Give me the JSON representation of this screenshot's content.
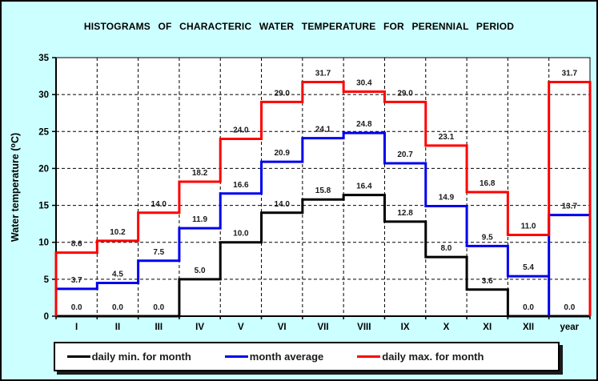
{
  "title": "HISTOGRAMS OF CHARACTERIC WATER TEMPERATURE FOR PERENNIAL PERIOD",
  "chart_data": {
    "type": "line",
    "subtype": "step-histogram",
    "title": "HISTOGRAMS OF CHARACTERIC WATER TEMPERATURE FOR PERENNIAL PERIOD",
    "xlabel": "",
    "ylabel": "Water temperature (⁰C)",
    "categories": [
      "I",
      "II",
      "III",
      "IV",
      "V",
      "VI",
      "VII",
      "VIII",
      "IX",
      "X",
      "XI",
      "XII",
      "year"
    ],
    "ylim": [
      0,
      35
    ],
    "yticks": [
      0,
      5,
      10,
      15,
      20,
      25,
      30,
      35
    ],
    "grid": "dashed",
    "legend_position": "bottom",
    "plot_bg": "#ffffff",
    "page_bg": "#ccffff",
    "label_color": "#1a1a1a",
    "series": [
      {
        "name": "daily min. for month",
        "color": "#000000",
        "values": [
          0.0,
          0.0,
          0.0,
          5.0,
          10.0,
          14.0,
          15.8,
          16.4,
          12.8,
          8.0,
          3.6,
          0.0,
          0.0
        ]
      },
      {
        "name": "month average",
        "color": "#0000ee",
        "values": [
          3.7,
          4.5,
          7.5,
          11.9,
          16.6,
          20.9,
          24.1,
          24.8,
          20.7,
          14.9,
          9.5,
          5.4,
          13.7
        ],
        "drops_to_zero_before_year": true
      },
      {
        "name": "daily max. for month",
        "color": "#ff0000",
        "values": [
          8.6,
          10.2,
          14.0,
          18.2,
          24.0,
          29.0,
          31.7,
          30.4,
          29.0,
          23.1,
          16.8,
          11.0,
          31.7
        ]
      }
    ]
  }
}
